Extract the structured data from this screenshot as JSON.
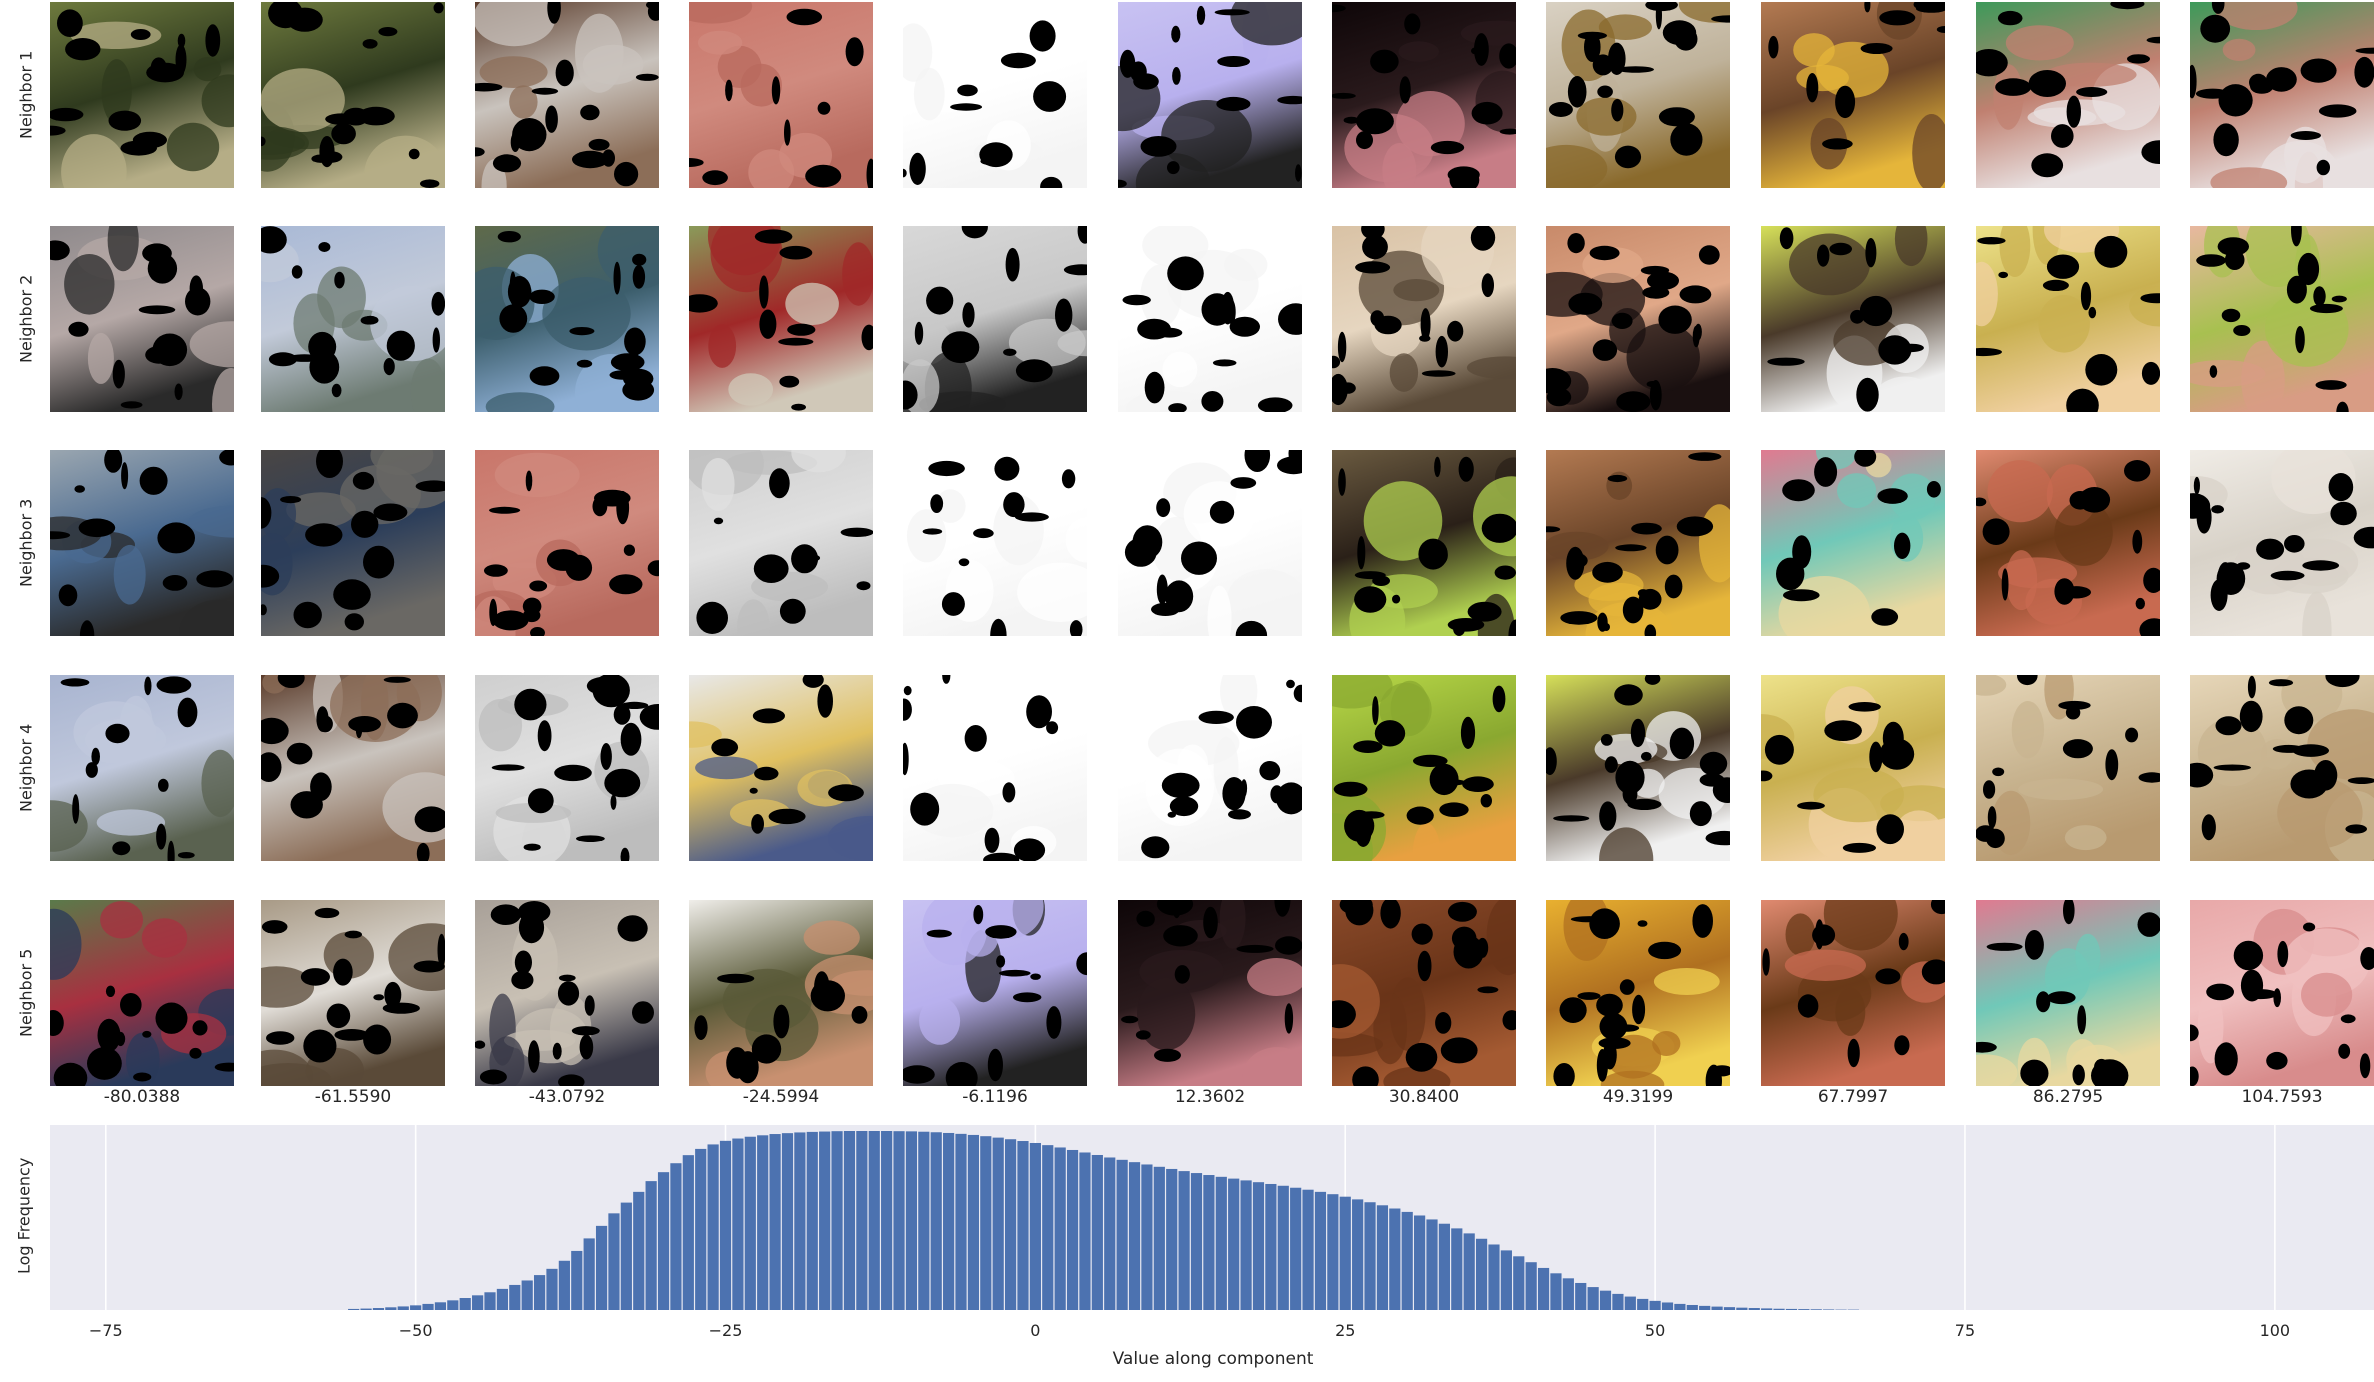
{
  "figure": {
    "row_labels": [
      "Neighbor 1",
      "Neighbor 2",
      "Neighbor 3",
      "Neighbor 4",
      "Neighbor 5"
    ],
    "column_values": [
      "-80.0388",
      "-61.5590",
      "-43.0792",
      "-24.5994",
      "-6.1196",
      "12.3602",
      "30.8400",
      "49.3199",
      "67.7997",
      "86.2795",
      "104.7593"
    ],
    "thumbnails": [
      [
        "park-tree",
        "park-tree",
        "door",
        "salmon-wall",
        "white-mask",
        "lavender-text",
        "dark-pink",
        "food-edge",
        "hand-fruit",
        "green-plate",
        "green-plate"
      ],
      [
        "people-street",
        "street-people",
        "blue-shirt",
        "cyclist",
        "book-text",
        "white-mask",
        "ruler",
        "face",
        "tennis-balls",
        "yellow-apple",
        "finger"
      ],
      [
        "police-car",
        "man-road",
        "salmon-wall",
        "gray-mask",
        "white-mask",
        "white-mask",
        "dark-green",
        "hand-fruit",
        "leaves",
        "hand-peel",
        "white-dark"
      ],
      [
        "street",
        "door",
        "gray-mask",
        "truck",
        "white-mask",
        "white-mask",
        "green-apple",
        "tennis-balls",
        "yellow-apple",
        "bowl",
        "bowl"
      ],
      [
        "people-forest",
        "sofa",
        "cyclists",
        "group",
        "lavender-text",
        "dark-pink",
        "brown-fabric",
        "lemons",
        "hand-peel",
        "leaves",
        "pink-skin"
      ]
    ],
    "palettes": {
      "park-tree": [
        "#6e7a3e",
        "#b5ad86",
        "#2f3a1e"
      ],
      "door": [
        "#5a3b2a",
        "#8c6e58",
        "#c9c3bd"
      ],
      "salmon-wall": [
        "#c9766a",
        "#b86a5e",
        "#d08a7e"
      ],
      "white-mask": [
        "#ffffff",
        "#f4f4f4",
        "#ffffff"
      ],
      "lavender-text": [
        "#c8c2f2",
        "#222222",
        "#b8b0ee"
      ],
      "dark-pink": [
        "#0e0608",
        "#c77d86",
        "#2a1a1c"
      ],
      "food-edge": [
        "#d9d1c3",
        "#8a6a2c",
        "#bfb29a"
      ],
      "hand-fruit": [
        "#b37a52",
        "#e5b53a",
        "#6a4428"
      ],
      "green-plate": [
        "#3d9a5a",
        "#e8e0e0",
        "#c08070"
      ],
      "people-street": [
        "#8f8a8c",
        "#2a2a2a",
        "#b5a8a6"
      ],
      "street-people": [
        "#a9b9d6",
        "#6d7b72",
        "#c2cad9"
      ],
      "blue-shirt": [
        "#5f6a4a",
        "#8fb0d6",
        "#3c5e6c"
      ],
      "cyclist": [
        "#8a9a5a",
        "#d0c8b8",
        "#a02828"
      ],
      "book-text": [
        "#d8d8d8",
        "#222222",
        "#c8c8c8"
      ],
      "ruler": [
        "#d9c2a5",
        "#5a4a38",
        "#e6d6c0"
      ],
      "face": [
        "#c88a6a",
        "#1a1010",
        "#e0a888"
      ],
      "tennis-balls": [
        "#d6e05a",
        "#f0f0f0",
        "#4a3a2a"
      ],
      "yellow-apple": [
        "#ede28a",
        "#f0d0a0",
        "#c9b050"
      ],
      "finger": [
        "#e8b8a0",
        "#d89c84",
        "#a8c050"
      ],
      "police-car": [
        "#9aa6b0",
        "#2a2a2a",
        "#4a6a90"
      ],
      "man-road": [
        "#4a4644",
        "#6a6864",
        "#2c3e5a"
      ],
      "gray-mask": [
        "#cfcfcf",
        "#bdbdbd",
        "#e0e0e0"
      ],
      "dark-green": [
        "#6a5a40",
        "#b0d050",
        "#2a2018"
      ],
      "leaves": [
        "#e07a90",
        "#e8d8a0",
        "#70c8b8"
      ],
      "hand-peel": [
        "#e08a70",
        "#c86a50",
        "#6a3a18"
      ],
      "white-dark": [
        "#f0ece6",
        "#e8e2da",
        "#d8d2c8"
      ],
      "street": [
        "#a8b4d0",
        "#5a6250",
        "#c0c8dc"
      ],
      "truck": [
        "#e8e8e8",
        "#4a5a8a",
        "#e0c060"
      ],
      "green-apple": [
        "#b8d848",
        "#e8a040",
        "#8aa830"
      ],
      "bowl": [
        "#e6d6b8",
        "#b89a70",
        "#c8b490"
      ],
      "people-forest": [
        "#5a7a4a",
        "#2a3a5a",
        "#a83040"
      ],
      "sofa": [
        "#a89a86",
        "#5a4a38",
        "#e0dcd6"
      ],
      "cyclists": [
        "#a8a098",
        "#3a3a48",
        "#c8c0b4"
      ],
      "group": [
        "#f0eeea",
        "#c89070",
        "#5a5a38"
      ],
      "brown-fabric": [
        "#8a4a2a",
        "#a45a32",
        "#6a3418"
      ],
      "lemons": [
        "#e8b030",
        "#f0d050",
        "#b07020"
      ],
      "pink-skin": [
        "#e8a8a8",
        "#d88c8c",
        "#f0c0c0"
      ]
    }
  },
  "chart_data": {
    "type": "bar",
    "xlabel": "Value along component",
    "ylabel": "Log Frequency",
    "xlim": [
      -79.5,
      108
    ],
    "ylim": [
      0,
      1
    ],
    "grid": true,
    "xticks": [
      -75,
      -50,
      -25,
      0,
      25,
      50,
      75,
      100
    ],
    "xtick_labels": [
      "−75",
      "−50",
      "−25",
      "0",
      "25",
      "50",
      "75",
      "100"
    ],
    "bar_color": "#4c72b0",
    "bins": {
      "x": [
        -55,
        -54,
        -53,
        -52,
        -51,
        -50,
        -49,
        -48,
        -47,
        -46,
        -45,
        -44,
        -43,
        -42,
        -41,
        -40,
        -39,
        -38,
        -37,
        -36,
        -35,
        -34,
        -33,
        -32,
        -31,
        -30,
        -29,
        -28,
        -27,
        -26,
        -25,
        -24,
        -23,
        -22,
        -21,
        -20,
        -19,
        -18,
        -17,
        -16,
        -15,
        -14,
        -13,
        -12,
        -11,
        -10,
        -9,
        -8,
        -7,
        -6,
        -5,
        -4,
        -3,
        -2,
        -1,
        0,
        1,
        2,
        3,
        4,
        5,
        6,
        7,
        8,
        9,
        10,
        11,
        12,
        13,
        14,
        15,
        16,
        17,
        18,
        19,
        20,
        21,
        22,
        23,
        24,
        25,
        26,
        27,
        28,
        29,
        30,
        31,
        32,
        33,
        34,
        35,
        36,
        37,
        38,
        39,
        40,
        41,
        42,
        43,
        44,
        45,
        46,
        47,
        48,
        49,
        50,
        51,
        52,
        53,
        54,
        55,
        56,
        57,
        58,
        59,
        60,
        61,
        62,
        63,
        64,
        65,
        66
      ],
      "y": [
        0.006,
        0.008,
        0.011,
        0.015,
        0.02,
        0.026,
        0.034,
        0.043,
        0.054,
        0.067,
        0.082,
        0.099,
        0.118,
        0.14,
        0.165,
        0.195,
        0.23,
        0.275,
        0.33,
        0.4,
        0.47,
        0.54,
        0.6,
        0.66,
        0.72,
        0.77,
        0.82,
        0.865,
        0.9,
        0.925,
        0.945,
        0.958,
        0.968,
        0.976,
        0.983,
        0.988,
        0.992,
        0.995,
        0.997,
        0.999,
        1,
        1,
        1,
        1,
        0.999,
        0.998,
        0.996,
        0.993,
        0.989,
        0.984,
        0.978,
        0.971,
        0.963,
        0.954,
        0.944,
        0.933,
        0.921,
        0.908,
        0.894,
        0.88,
        0.866,
        0.852,
        0.839,
        0.826,
        0.813,
        0.8,
        0.788,
        0.776,
        0.765,
        0.754,
        0.744,
        0.734,
        0.724,
        0.714,
        0.704,
        0.694,
        0.683,
        0.672,
        0.66,
        0.647,
        0.633,
        0.618,
        0.602,
        0.585,
        0.567,
        0.548,
        0.528,
        0.506,
        0.482,
        0.456,
        0.428,
        0.398,
        0.366,
        0.333,
        0.3,
        0.267,
        0.235,
        0.205,
        0.177,
        0.151,
        0.128,
        0.108,
        0.09,
        0.075,
        0.062,
        0.051,
        0.042,
        0.034,
        0.028,
        0.023,
        0.019,
        0.016,
        0.013,
        0.011,
        0.009,
        0.007,
        0.006,
        0.005,
        0.004,
        0.003,
        0.002,
        0.002
      ]
    }
  }
}
